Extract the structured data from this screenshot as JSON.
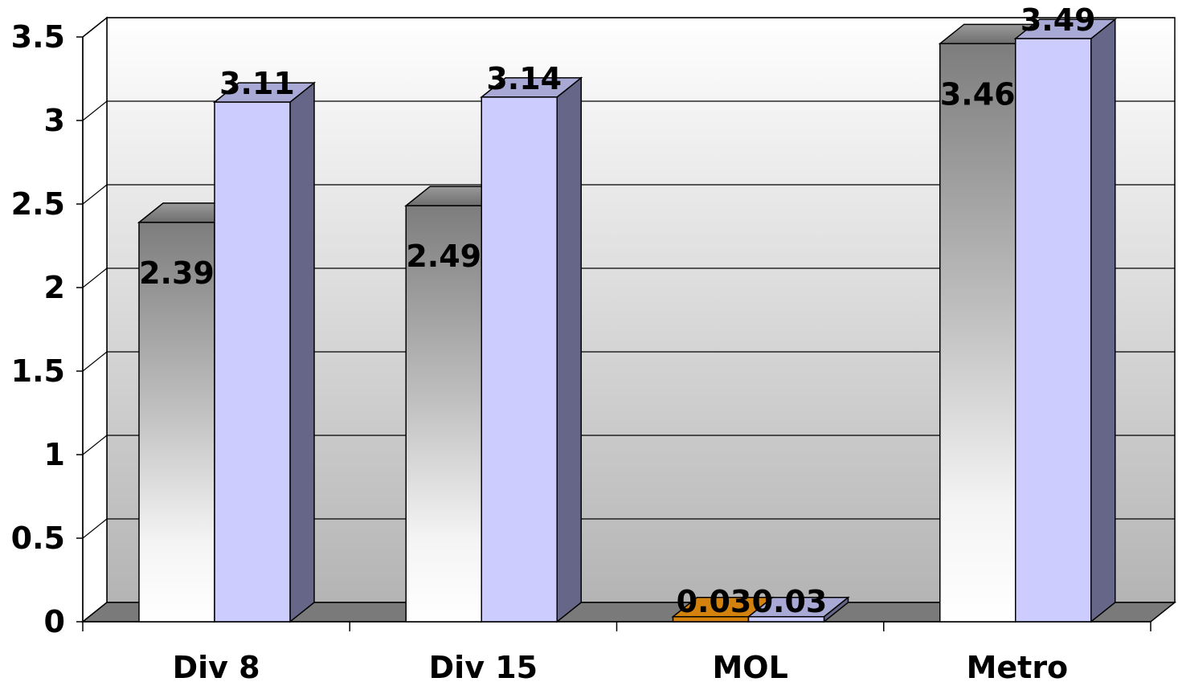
{
  "chart_data": {
    "type": "bar",
    "style": "3d-clustered-column",
    "categories": [
      "Div 8",
      "Div 15",
      "MOL",
      "Metro"
    ],
    "series": [
      {
        "values": [
          2.39,
          2.49,
          0.03,
          3.46
        ],
        "labels": [
          "2.39",
          "2.49",
          "0.03",
          "3.46"
        ],
        "fill": "gradient-gray",
        "override_colors": [
          null,
          null,
          "#D4820E",
          null
        ]
      },
      {
        "values": [
          3.11,
          3.14,
          0.03,
          3.49
        ],
        "labels": [
          "3.11",
          "3.14",
          "0.03",
          "3.49"
        ],
        "fill": "#CCCCFF",
        "side_color": "#666688"
      }
    ],
    "y_ticks": [
      "0",
      "0.5",
      "1",
      "1.5",
      "2",
      "2.5",
      "3",
      "3.5"
    ],
    "ylim": [
      0,
      3.5
    ],
    "grid": true,
    "legend": "none",
    "title": "",
    "xlabel": "",
    "ylabel": ""
  }
}
